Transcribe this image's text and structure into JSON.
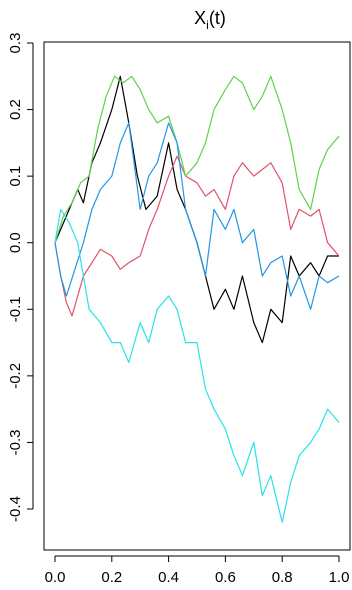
{
  "chart_data": {
    "type": "line",
    "title": {
      "main": "X",
      "subscript": "i",
      "suffix": "(t)"
    },
    "xlabel": "",
    "ylabel": "",
    "xlim": [
      0,
      1
    ],
    "ylim": [
      -0.45,
      0.3
    ],
    "xticks": [
      0.0,
      0.2,
      0.4,
      0.6,
      0.8,
      1.0
    ],
    "xtick_labels": [
      "0.0",
      "0.2",
      "0.4",
      "0.6",
      "0.8",
      "1.0"
    ],
    "yticks": [
      -0.4,
      -0.3,
      -0.2,
      -0.1,
      0.0,
      0.1,
      0.2,
      0.3
    ],
    "ytick_labels": [
      "-0.4",
      "-0.3",
      "-0.2",
      "-0.1",
      "0.0",
      "0.1",
      "0.2",
      "0.3"
    ],
    "grid": false,
    "legend": "none",
    "series": [
      {
        "color": "#000000",
        "x": [
          0,
          0.02,
          0.05,
          0.08,
          0.1,
          0.13,
          0.16,
          0.2,
          0.23,
          0.26,
          0.29,
          0.32,
          0.36,
          0.4,
          0.43,
          0.46,
          0.5,
          0.53,
          0.56,
          0.6,
          0.63,
          0.66,
          0.7,
          0.73,
          0.76,
          0.8,
          0.83,
          0.86,
          0.9,
          0.93,
          0.96,
          1.0
        ],
        "y": [
          0,
          0.02,
          0.05,
          0.08,
          0.06,
          0.12,
          0.15,
          0.2,
          0.25,
          0.18,
          0.1,
          0.05,
          0.07,
          0.15,
          0.08,
          0.05,
          0.0,
          -0.05,
          -0.1,
          -0.07,
          -0.1,
          -0.05,
          -0.12,
          -0.15,
          -0.1,
          -0.12,
          -0.02,
          -0.05,
          -0.03,
          -0.05,
          -0.02,
          -0.02
        ]
      },
      {
        "color": "#DF536B",
        "x": [
          0,
          0.02,
          0.04,
          0.06,
          0.08,
          0.1,
          0.13,
          0.16,
          0.2,
          0.23,
          0.26,
          0.3,
          0.33,
          0.36,
          0.4,
          0.43,
          0.46,
          0.5,
          0.53,
          0.56,
          0.6,
          0.63,
          0.66,
          0.7,
          0.73,
          0.76,
          0.8,
          0.83,
          0.86,
          0.9,
          0.93,
          0.96,
          1.0
        ],
        "y": [
          0,
          -0.05,
          -0.09,
          -0.11,
          -0.08,
          -0.05,
          -0.03,
          -0.01,
          -0.02,
          -0.04,
          -0.03,
          -0.02,
          0.02,
          0.05,
          0.1,
          0.13,
          0.1,
          0.09,
          0.07,
          0.08,
          0.05,
          0.1,
          0.12,
          0.1,
          0.11,
          0.12,
          0.09,
          0.02,
          0.05,
          0.04,
          0.05,
          0.0,
          -0.02
        ]
      },
      {
        "color": "#61D04F",
        "x": [
          0,
          0.03,
          0.06,
          0.09,
          0.12,
          0.15,
          0.18,
          0.21,
          0.24,
          0.27,
          0.3,
          0.33,
          0.36,
          0.4,
          0.43,
          0.46,
          0.5,
          0.53,
          0.56,
          0.6,
          0.63,
          0.66,
          0.7,
          0.73,
          0.76,
          0.8,
          0.83,
          0.86,
          0.9,
          0.93,
          0.96,
          1.0
        ],
        "y": [
          0,
          0.04,
          0.06,
          0.09,
          0.1,
          0.17,
          0.22,
          0.25,
          0.24,
          0.25,
          0.23,
          0.2,
          0.18,
          0.19,
          0.15,
          0.1,
          0.12,
          0.15,
          0.2,
          0.23,
          0.25,
          0.24,
          0.2,
          0.22,
          0.25,
          0.2,
          0.15,
          0.08,
          0.05,
          0.11,
          0.14,
          0.16
        ]
      },
      {
        "color": "#2297E6",
        "x": [
          0,
          0.02,
          0.04,
          0.07,
          0.1,
          0.13,
          0.16,
          0.2,
          0.23,
          0.26,
          0.3,
          0.33,
          0.36,
          0.4,
          0.43,
          0.46,
          0.5,
          0.53,
          0.56,
          0.6,
          0.63,
          0.66,
          0.7,
          0.73,
          0.76,
          0.8,
          0.83,
          0.86,
          0.9,
          0.93,
          0.96,
          1.0
        ],
        "y": [
          0,
          -0.05,
          -0.08,
          -0.04,
          0.0,
          0.05,
          0.08,
          0.1,
          0.15,
          0.18,
          0.05,
          0.1,
          0.12,
          0.18,
          0.15,
          0.05,
          0.0,
          -0.05,
          0.05,
          0.02,
          0.05,
          0.0,
          0.02,
          -0.05,
          -0.03,
          -0.02,
          -0.08,
          -0.05,
          -0.1,
          -0.05,
          -0.06,
          -0.05
        ]
      },
      {
        "color": "#28E2E5",
        "x": [
          0,
          0.02,
          0.05,
          0.08,
          0.12,
          0.16,
          0.2,
          0.23,
          0.26,
          0.3,
          0.33,
          0.36,
          0.4,
          0.43,
          0.46,
          0.5,
          0.53,
          0.56,
          0.6,
          0.63,
          0.66,
          0.7,
          0.73,
          0.76,
          0.8,
          0.83,
          0.86,
          0.9,
          0.93,
          0.96,
          1.0
        ],
        "y": [
          0,
          0.05,
          0.03,
          0.0,
          -0.1,
          -0.12,
          -0.15,
          -0.15,
          -0.18,
          -0.12,
          -0.15,
          -0.1,
          -0.08,
          -0.1,
          -0.15,
          -0.15,
          -0.22,
          -0.25,
          -0.28,
          -0.32,
          -0.35,
          -0.3,
          -0.38,
          -0.35,
          -0.42,
          -0.36,
          -0.32,
          -0.3,
          -0.28,
          -0.25,
          -0.27
        ]
      }
    ]
  }
}
